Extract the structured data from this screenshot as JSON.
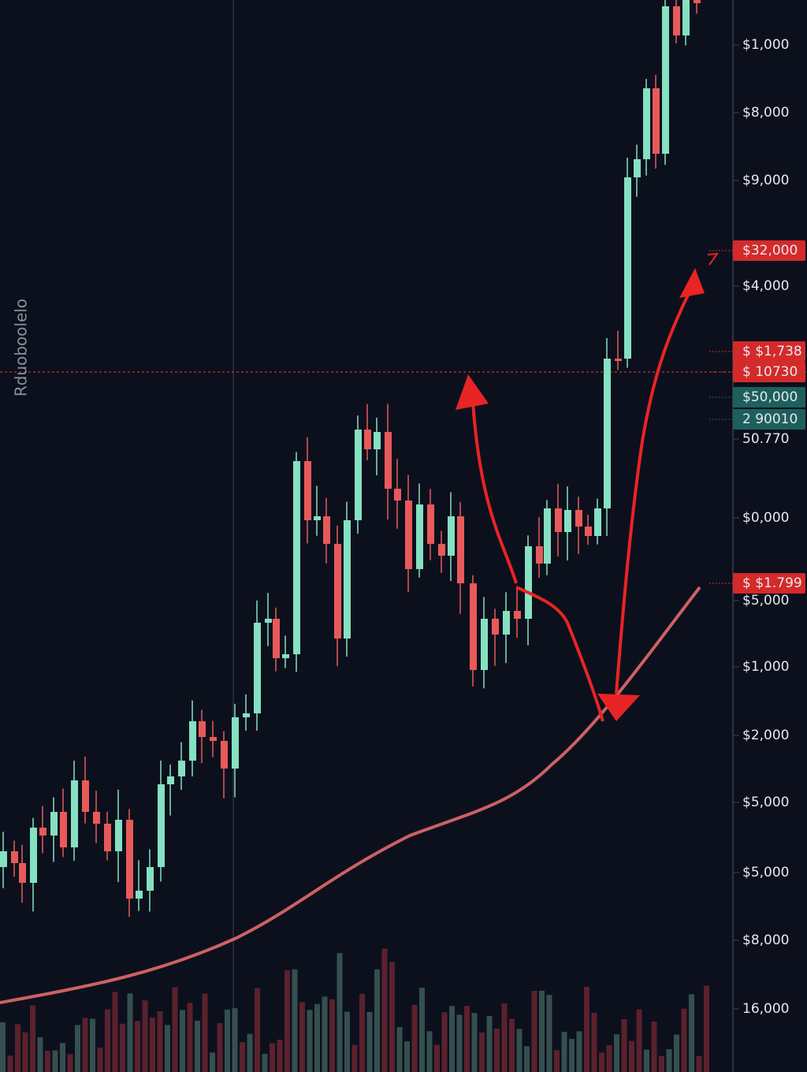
{
  "side_label": "Rduoboolelo",
  "axis_labels": [
    "$1,000",
    "$8,000",
    "$9,000",
    "$32,000",
    "$4,000",
    "$ $1,738",
    "$ 10730",
    "$50,000",
    "2 90010",
    "50.770",
    "$0,000",
    "$ $1.799",
    "$5,000",
    "$1,000",
    "$2,000",
    "$5,000",
    "$5,000",
    "$8,000",
    "16,000"
  ]
}
